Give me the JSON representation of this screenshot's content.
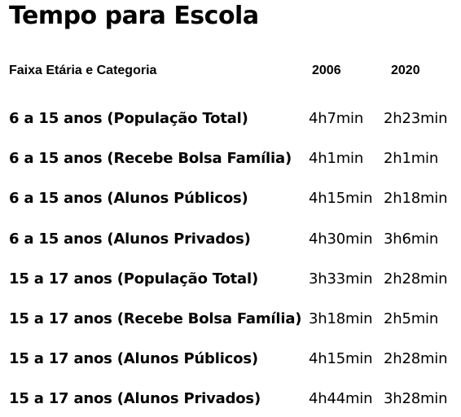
{
  "chart_data": {
    "type": "table",
    "title": "Tempo para Escola",
    "columns": [
      "Faixa Etária e Categoria",
      "2006",
      "2020"
    ],
    "rows": [
      {
        "category": "6 a 15 anos (População Total)",
        "v2006": "4h7min",
        "v2020": "2h23min"
      },
      {
        "category": "6 a 15 anos (Recebe Bolsa Família)",
        "v2006": "4h1min",
        "v2020": "2h1min"
      },
      {
        "category": "6 a 15 anos (Alunos Públicos)",
        "v2006": "4h15min",
        "v2020": "2h18min"
      },
      {
        "category": "6 a 15 anos (Alunos Privados)",
        "v2006": "4h30min",
        "v2020": "3h6min"
      },
      {
        "category": "15 a 17 anos (População Total)",
        "v2006": "3h33min",
        "v2020": "2h28min"
      },
      {
        "category": "15 a 17 anos (Recebe Bolsa Família)",
        "v2006": "3h18min",
        "v2020": "2h5min"
      },
      {
        "category": "15 a 17 anos (Alunos Públicos)",
        "v2006": "4h15min",
        "v2020": "2h28min"
      },
      {
        "category": "15 a 17 anos (Alunos Privados)",
        "v2006": "4h44min",
        "v2020": "3h28min"
      }
    ]
  }
}
